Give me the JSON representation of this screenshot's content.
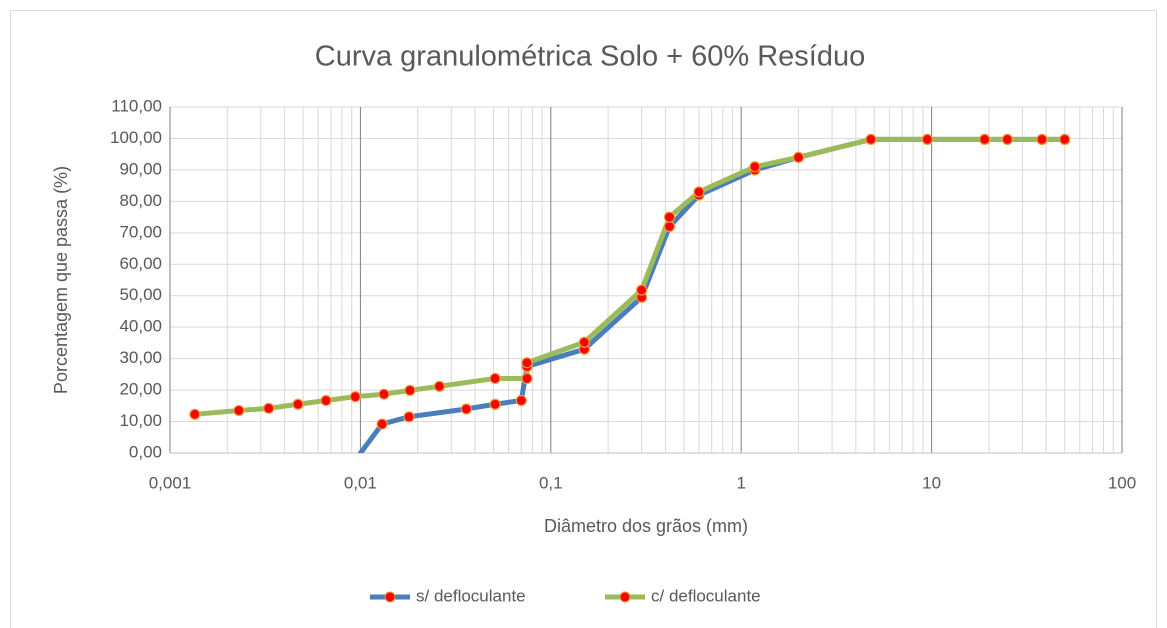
{
  "chart_data": {
    "type": "line",
    "title": "Curva granulométrica Solo + 60% Resíduo",
    "x_label": "Diâmetro dos grãos (mm)",
    "y_label": "Porcentagem que passa (%)",
    "x_scale": "log",
    "xlim": [
      0.001,
      100
    ],
    "xticks": [
      {
        "value": 0.001,
        "label": "0,001"
      },
      {
        "value": 0.01,
        "label": "0,01"
      },
      {
        "value": 0.1,
        "label": "0,1"
      },
      1,
      10,
      100
    ],
    "ylim": [
      0,
      110
    ],
    "yticks": [
      {
        "value": 0,
        "label": "0,00"
      },
      {
        "value": 10,
        "label": "10,00"
      },
      {
        "value": 20,
        "label": "20,00"
      },
      {
        "value": 30,
        "label": "30,00"
      },
      {
        "value": 40,
        "label": "40,00"
      },
      {
        "value": 50,
        "label": "50,00"
      },
      {
        "value": 60,
        "label": "60,00"
      },
      {
        "value": 70,
        "label": "70,00"
      },
      {
        "value": 80,
        "label": "80,00"
      },
      {
        "value": 90,
        "label": "90,00"
      },
      {
        "value": 100,
        "label": "100,00"
      },
      {
        "value": 110,
        "label": "110,00"
      }
    ],
    "grid": true,
    "minor_grid": true,
    "legend": "bottom",
    "marker_color": "#ff0000",
    "series": [
      {
        "name": "s/ defloculante",
        "color": "#4a7ebb",
        "x": [
          0.0092,
          0.013,
          0.018,
          0.036,
          0.051,
          0.07,
          0.075,
          0.15,
          0.3,
          0.42,
          0.6,
          1.18,
          2,
          4.8,
          9.5,
          19,
          25,
          38,
          50
        ],
        "values": [
          -3,
          9.2,
          11.5,
          14,
          15.5,
          16.7,
          27.5,
          33,
          49.5,
          72,
          82,
          90,
          94,
          99.7,
          99.7,
          99.7,
          99.7,
          99.7,
          99.7
        ]
      },
      {
        "name": "c/ defloculante",
        "color": "#9bbb59",
        "x": [
          0.00135,
          0.0023,
          0.0033,
          0.0047,
          0.0066,
          0.0094,
          0.0133,
          0.0182,
          0.026,
          0.051,
          0.075,
          0.075,
          0.15,
          0.3,
          0.42,
          0.6,
          1.18,
          2,
          4.8,
          9.5,
          19,
          25,
          38,
          50
        ],
        "values": [
          12.3,
          13.5,
          14.2,
          15.5,
          16.7,
          17.9,
          18.7,
          19.9,
          21.2,
          23.7,
          23.7,
          28.7,
          35.2,
          51.8,
          75,
          83,
          91,
          94,
          99.7,
          99.7,
          99.7,
          99.7,
          99.7,
          99.7
        ]
      }
    ]
  }
}
